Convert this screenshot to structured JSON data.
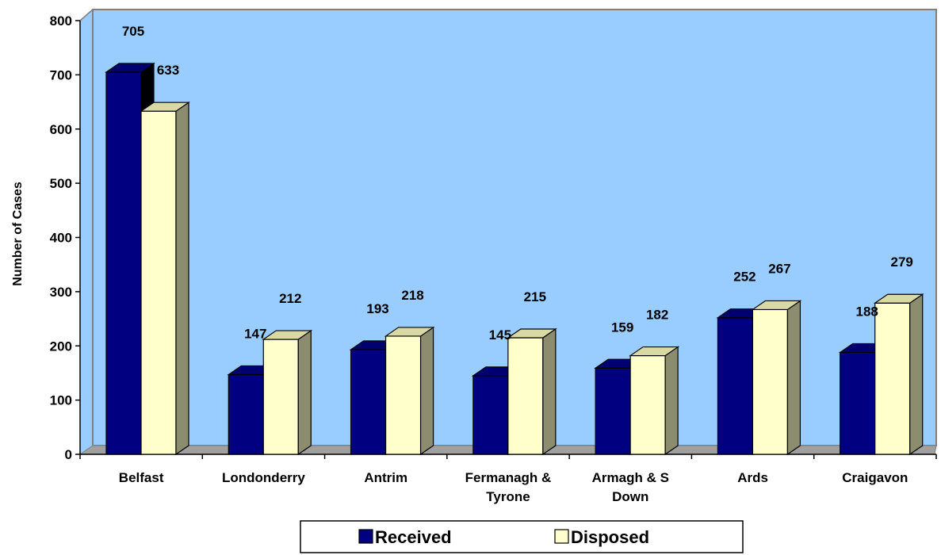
{
  "chart_data": {
    "type": "bar",
    "style": "3d-clustered-column",
    "title": "",
    "xlabel": "",
    "ylabel": "Number of Cases",
    "ylim": [
      0,
      800
    ],
    "yticks": [
      0,
      100,
      200,
      300,
      400,
      500,
      600,
      700,
      800
    ],
    "grid": false,
    "legend_position": "bottom",
    "plot_background": "#99CCFF",
    "categories": [
      [
        "Belfast"
      ],
      [
        "Londonderry"
      ],
      [
        "Antrim"
      ],
      [
        "Fermanagh &",
        "Tyrone"
      ],
      [
        "Armagh & S",
        "Down"
      ],
      [
        "Ards"
      ],
      [
        "Craigavon"
      ]
    ],
    "series": [
      {
        "name": "Received",
        "color": "#000080",
        "values": [
          705,
          147,
          193,
          145,
          159,
          252,
          188
        ]
      },
      {
        "name": "Disposed",
        "color": "#FFFFCC",
        "values": [
          633,
          212,
          218,
          215,
          182,
          267,
          279
        ]
      }
    ]
  }
}
